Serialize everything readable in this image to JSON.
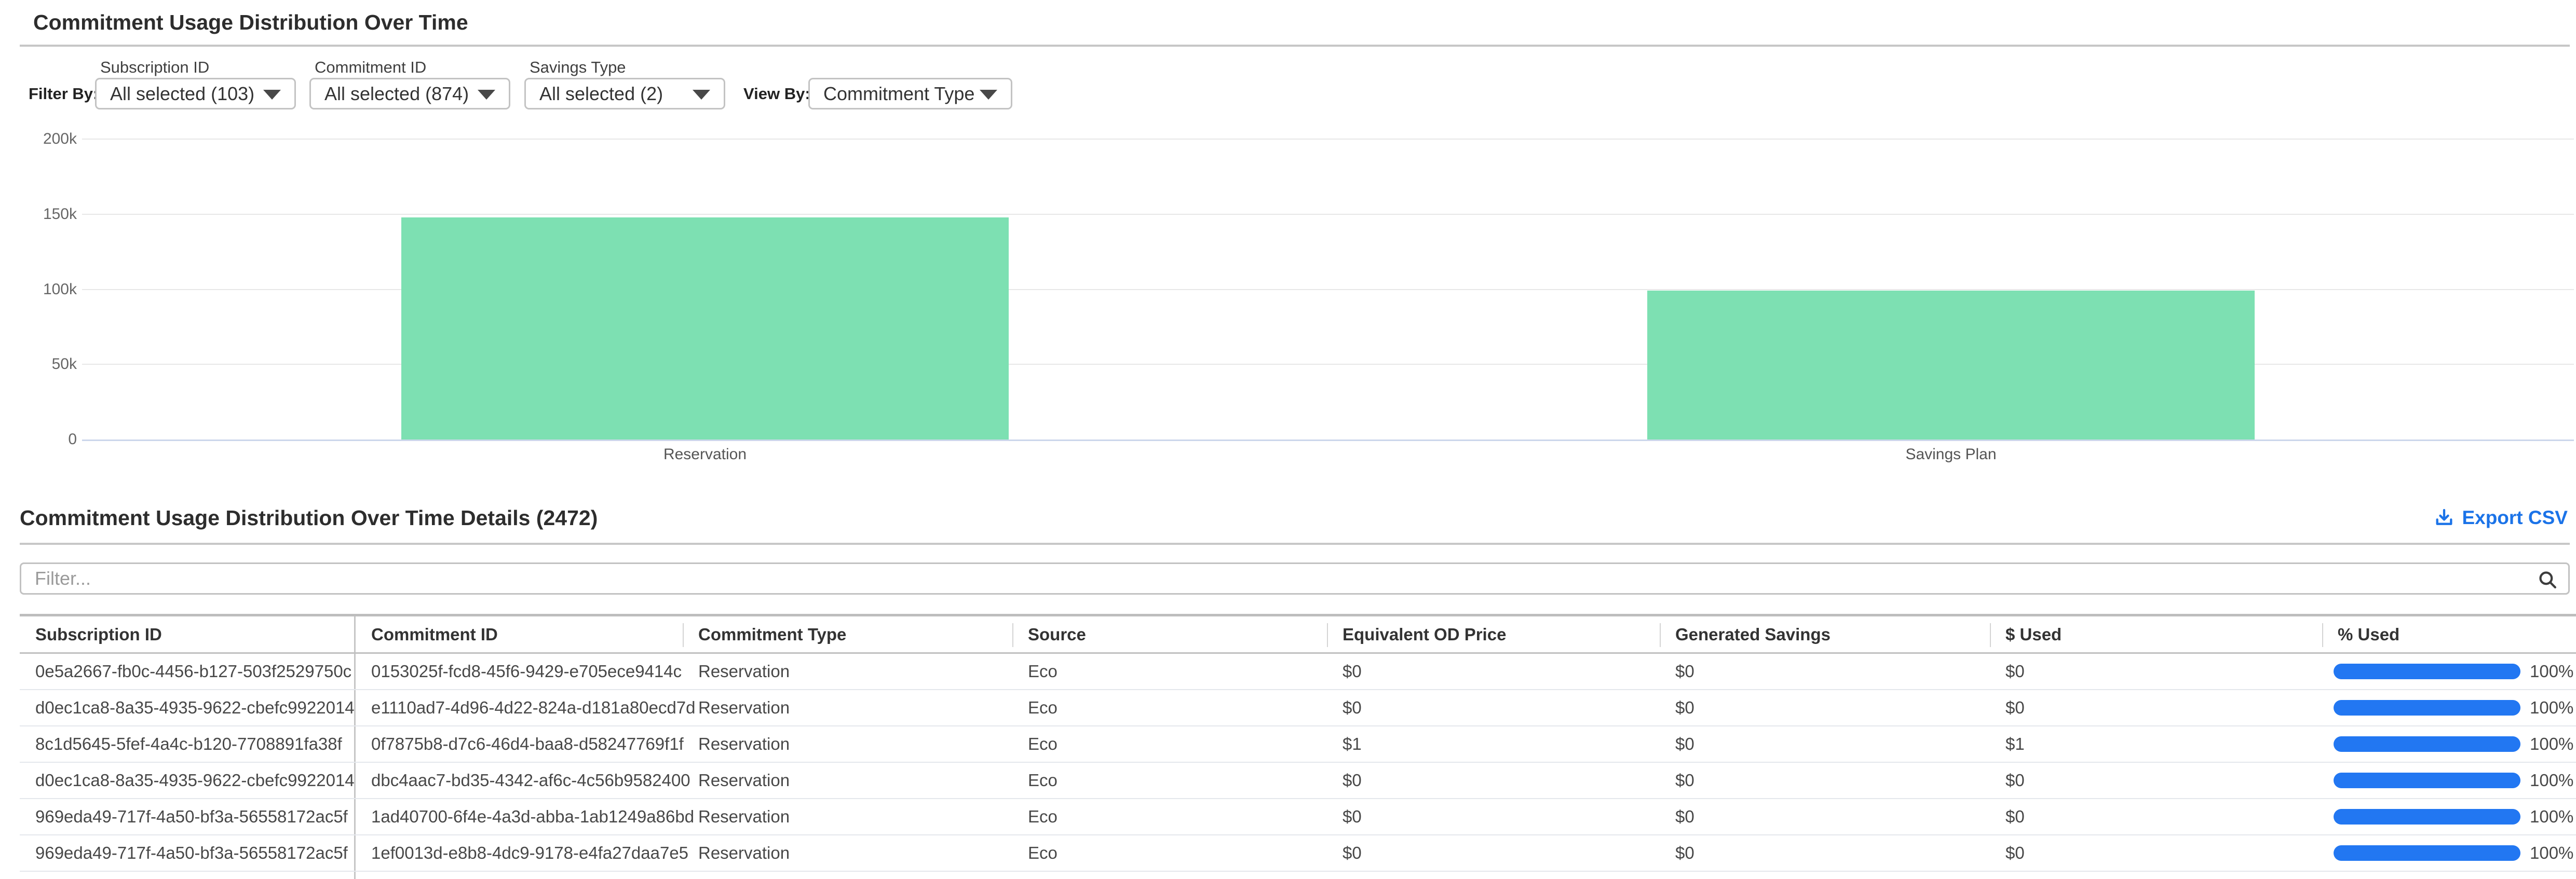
{
  "header": {
    "title": "Commitment Usage Distribution Over Time"
  },
  "filters": {
    "filter_by_label": "Filter By:",
    "view_by_label": "View By:",
    "dropdowns": [
      {
        "label": "Subscription ID",
        "value": "All selected (103)"
      },
      {
        "label": "Commitment ID",
        "value": "All selected (874)"
      },
      {
        "label": "Savings Type",
        "value": "All selected (2)"
      },
      {
        "label": "",
        "value": "Commitment Type"
      }
    ]
  },
  "chart_data": {
    "type": "bar",
    "title": "Commitment Usage Distribution Over Time",
    "categories": [
      "Reservation",
      "Savings Plan"
    ],
    "values": [
      148000,
      99000
    ],
    "xlabel": "",
    "ylabel": "",
    "ylim": [
      0,
      200000
    ],
    "yticks": [
      0,
      50000,
      100000,
      150000,
      200000
    ],
    "ytick_labels": [
      "0",
      "50k",
      "100k",
      "150k",
      "200k"
    ],
    "grid": "horizontal",
    "legend": "none",
    "bar_color": "#7de0b2"
  },
  "details": {
    "title": "Commitment Usage Distribution Over Time Details (2472)",
    "export_label": "Export CSV",
    "filter_placeholder": "Filter...",
    "columns": [
      {
        "key": "subscription_id",
        "label": "Subscription ID"
      },
      {
        "key": "commitment_id",
        "label": "Commitment ID"
      },
      {
        "key": "commitment_type",
        "label": "Commitment Type"
      },
      {
        "key": "source",
        "label": "Source"
      },
      {
        "key": "equivalent_od_price",
        "label": "Equivalent OD Price"
      },
      {
        "key": "generated_savings",
        "label": "Generated Savings"
      },
      {
        "key": "used",
        "label": "$ Used"
      },
      {
        "key": "pct_used",
        "label": "% Used"
      }
    ],
    "rows": [
      {
        "subscription_id": "0e5a2667-fb0c-4456-b127-503f2529750c",
        "commitment_id": "0153025f-fcd8-45f6-9429-e705ece9414c",
        "commitment_type": "Reservation",
        "source": "Eco",
        "equivalent_od_price": "$0",
        "generated_savings": "$0",
        "used": "$0",
        "pct_used": "100%",
        "pct_value": 100
      },
      {
        "subscription_id": "d0ec1ca8-8a35-4935-9622-cbefc9922014",
        "commitment_id": "e1110ad7-4d96-4d22-824a-d181a80ecd7d",
        "commitment_type": "Reservation",
        "source": "Eco",
        "equivalent_od_price": "$0",
        "generated_savings": "$0",
        "used": "$0",
        "pct_used": "100%",
        "pct_value": 100
      },
      {
        "subscription_id": "8c1d5645-5fef-4a4c-b120-7708891fa38f",
        "commitment_id": "0f7875b8-d7c6-46d4-baa8-d58247769f1f",
        "commitment_type": "Reservation",
        "source": "Eco",
        "equivalent_od_price": "$1",
        "generated_savings": "$0",
        "used": "$1",
        "pct_used": "100%",
        "pct_value": 100
      },
      {
        "subscription_id": "d0ec1ca8-8a35-4935-9622-cbefc9922014",
        "commitment_id": "dbc4aac7-bd35-4342-af6c-4c56b9582400",
        "commitment_type": "Reservation",
        "source": "Eco",
        "equivalent_od_price": "$0",
        "generated_savings": "$0",
        "used": "$0",
        "pct_used": "100%",
        "pct_value": 100
      },
      {
        "subscription_id": "969eda49-717f-4a50-bf3a-56558172ac5f",
        "commitment_id": "1ad40700-6f4e-4a3d-abba-1ab1249a86bd",
        "commitment_type": "Reservation",
        "source": "Eco",
        "equivalent_od_price": "$0",
        "generated_savings": "$0",
        "used": "$0",
        "pct_used": "100%",
        "pct_value": 100
      },
      {
        "subscription_id": "969eda49-717f-4a50-bf3a-56558172ac5f",
        "commitment_id": "1ef0013d-e8b8-4dc9-9178-e4fa27daa7e5",
        "commitment_type": "Reservation",
        "source": "Eco",
        "equivalent_od_price": "$0",
        "generated_savings": "$0",
        "used": "$0",
        "pct_used": "100%",
        "pct_value": 100
      }
    ]
  },
  "colors": {
    "bar_green": "#7de0b2",
    "baseline_blue": "#ccd6eb",
    "accent_blue": "#1b73e8",
    "progress_blue": "#2277f2"
  }
}
